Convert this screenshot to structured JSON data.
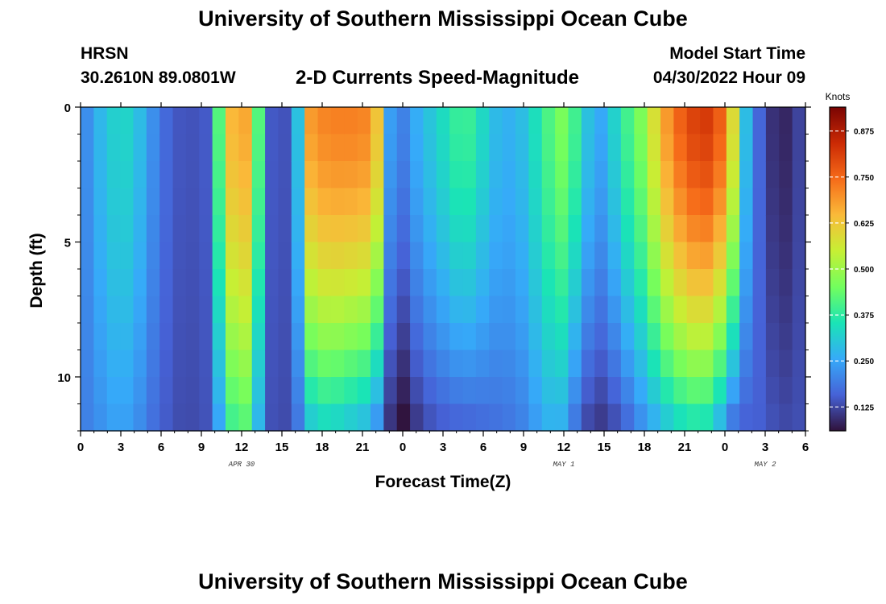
{
  "header": {
    "title": "University of Southern Mississippi Ocean Cube",
    "station": "HRSN",
    "coordinates": "30.2610N  89.0801W",
    "subtitle": "2-D Currents Speed-Magnitude",
    "model_start_label": "Model Start Time",
    "model_start_value": "04/30/2022 Hour 09"
  },
  "footer": {
    "title": "University of Southern Mississippi Ocean Cube"
  },
  "chart_data": {
    "type": "heatmap",
    "title": "2-D Currents Speed-Magnitude",
    "xlabel": "Forecast Time(Z)",
    "ylabel": "Depth (ft)",
    "x_tick_labels": [
      "0",
      "3",
      "6",
      "9",
      "12",
      "15",
      "18",
      "21",
      "0",
      "3",
      "6",
      "9",
      "12",
      "15",
      "18",
      "21",
      "0",
      "3",
      "6"
    ],
    "x_range_hours": [
      0,
      54
    ],
    "date_labels": [
      {
        "label": "APR 30",
        "hour": 12
      },
      {
        "label": "MAY 1",
        "hour": 36
      },
      {
        "label": "MAY 2",
        "hour": 51
      }
    ],
    "y_ticks": [
      0,
      5,
      10
    ],
    "ylim_ft": [
      0,
      12
    ],
    "y_reversed": true,
    "colorbar": {
      "unit": "Knots",
      "ticks": [
        "0.125",
        "0.250",
        "0.375",
        "0.500",
        "0.625",
        "0.750",
        "0.875"
      ],
      "range": [
        0.06,
        0.94
      ],
      "colors": [
        "#30123b",
        "#4662d7",
        "#36aaf9",
        "#1ae4b6",
        "#72fe5e",
        "#c7ef34",
        "#faba39",
        "#f66b19",
        "#cb2a04",
        "#7a0403"
      ]
    },
    "n_time_columns": 55,
    "depth_rows_ft": [
      0.5,
      1.5,
      2.5,
      3.5,
      4.5,
      5.5,
      6.5,
      7.5,
      8.5,
      9.5,
      10.5,
      11.5
    ],
    "speed_profile_knots": {
      "hours": [
        0,
        0.5,
        1.5,
        2.5,
        3.3,
        4.2,
        5.2,
        6.3,
        7.5,
        8.5,
        9.5,
        10.0,
        10.5,
        11.0,
        11.5,
        12.0,
        12.5,
        13.0,
        13.5,
        14.0,
        14.7,
        15.3,
        16.0,
        16.6,
        17.0,
        17.5,
        18.5,
        19.5,
        20.5,
        21.5,
        22.0,
        22.5,
        23.0,
        23.5,
        24.0,
        24.5,
        25.0,
        26.0,
        27.5,
        28.5,
        29.5,
        30.5,
        31.5,
        32.5,
        33.5,
        34.0,
        34.7,
        35.3,
        35.8,
        36.3,
        36.8,
        37.3,
        38.0,
        38.7,
        39.2,
        40.0,
        41.0,
        42.0,
        43.0,
        44.0,
        45.0,
        46.0,
        47.0,
        47.5,
        48.0,
        48.5,
        49.0,
        49.5,
        50.0,
        51.0,
        52.0,
        53.0,
        54.0
      ],
      "surface": [
        0.18,
        0.22,
        0.28,
        0.32,
        0.33,
        0.3,
        0.23,
        0.17,
        0.14,
        0.14,
        0.15,
        0.25,
        0.52,
        0.62,
        0.67,
        0.68,
        0.66,
        0.58,
        0.26,
        0.15,
        0.14,
        0.14,
        0.2,
        0.48,
        0.68,
        0.7,
        0.72,
        0.72,
        0.72,
        0.71,
        0.66,
        0.5,
        0.25,
        0.18,
        0.2,
        0.22,
        0.26,
        0.3,
        0.36,
        0.41,
        0.36,
        0.3,
        0.26,
        0.28,
        0.3,
        0.36,
        0.4,
        0.44,
        0.46,
        0.45,
        0.4,
        0.33,
        0.28,
        0.25,
        0.28,
        0.34,
        0.42,
        0.48,
        0.62,
        0.72,
        0.78,
        0.82,
        0.82,
        0.78,
        0.72,
        0.62,
        0.47,
        0.3,
        0.22,
        0.12,
        0.08,
        0.09,
        0.15
      ],
      "bottom": [
        0.17,
        0.2,
        0.22,
        0.24,
        0.24,
        0.22,
        0.18,
        0.15,
        0.13,
        0.13,
        0.14,
        0.18,
        0.28,
        0.36,
        0.4,
        0.42,
        0.4,
        0.34,
        0.2,
        0.14,
        0.13,
        0.13,
        0.16,
        0.23,
        0.28,
        0.31,
        0.32,
        0.3,
        0.28,
        0.26,
        0.22,
        0.16,
        0.1,
        0.06,
        0.05,
        0.07,
        0.1,
        0.13,
        0.15,
        0.15,
        0.16,
        0.17,
        0.18,
        0.19,
        0.21,
        0.24,
        0.26,
        0.27,
        0.26,
        0.23,
        0.18,
        0.14,
        0.11,
        0.1,
        0.11,
        0.13,
        0.17,
        0.22,
        0.26,
        0.3,
        0.33,
        0.34,
        0.32,
        0.27,
        0.21,
        0.17,
        0.15,
        0.15,
        0.16,
        0.15,
        0.13,
        0.13,
        0.14
      ]
    }
  }
}
